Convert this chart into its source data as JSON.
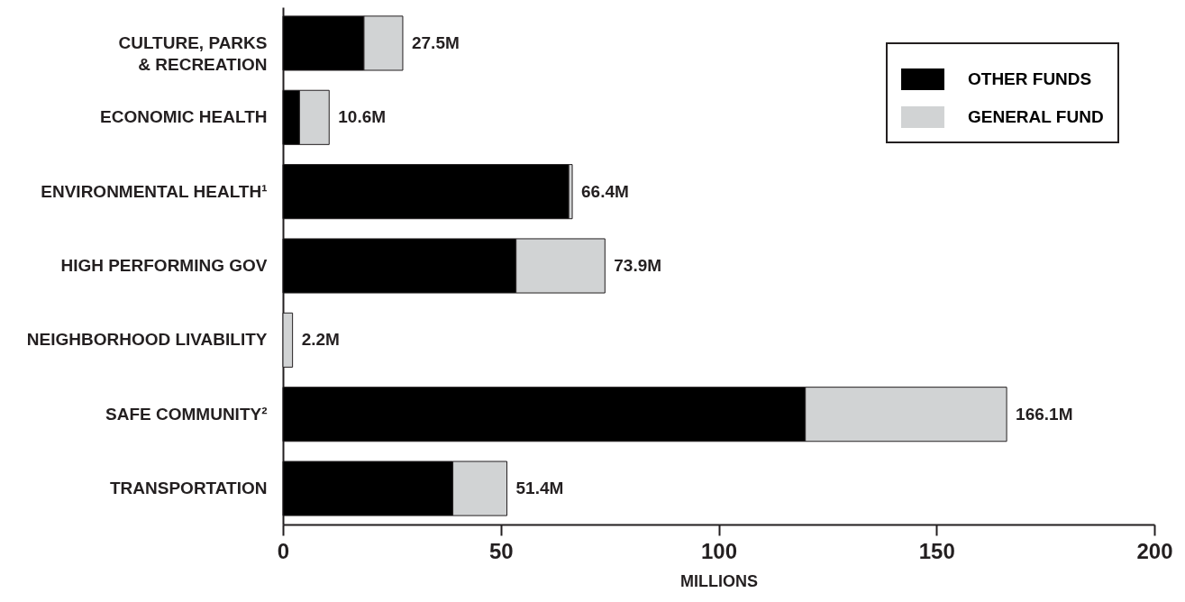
{
  "chart_data": {
    "type": "bar",
    "orientation": "horizontal",
    "stacked": true,
    "categories": [
      "CULTURE, PARKS\n& RECREATION",
      "ECONOMIC HEALTH",
      "ENVIRONMENTAL HEALTH¹",
      "HIGH PERFORMING GOV",
      "NEIGHBORHOOD LIVABILITY",
      "SAFE COMMUNITY²",
      "TRANSPORTATION"
    ],
    "series": [
      {
        "name": "OTHER FUNDS",
        "color": "#000000",
        "values": [
          18.6,
          3.8,
          65.6,
          53.5,
          null,
          119.9,
          39.0
        ]
      },
      {
        "name": "GENERAL FUND",
        "color": "#d1d3d4",
        "values": [
          8.9,
          6.8,
          0.8,
          20.4,
          2.2,
          46.2,
          12.4
        ]
      }
    ],
    "totals": [
      "27.5M",
      "10.6M",
      "66.4M",
      "73.9M",
      "2.2M",
      "166.1M",
      "51.4M"
    ],
    "xlabel": "MILLIONS",
    "xlim": [
      0,
      200
    ],
    "xticks": [
      0,
      50,
      100,
      150,
      200
    ],
    "legend": "top right"
  }
}
